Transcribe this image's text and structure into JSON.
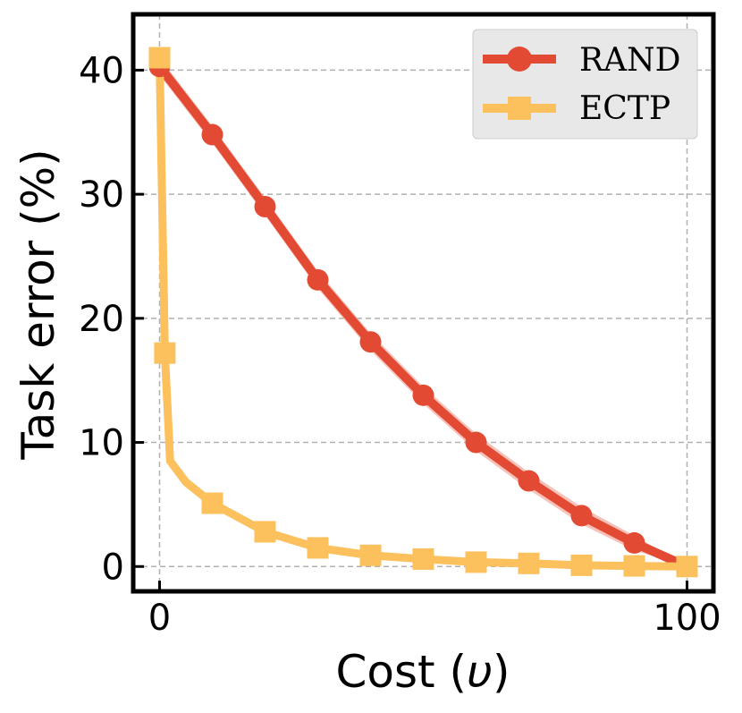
{
  "chart_data": {
    "type": "line",
    "title": "",
    "xlabel_main": "Cost (",
    "xlabel_var": "υ",
    "xlabel_end": ")",
    "ylabel": "Task error (%)",
    "xlim": [
      -5,
      105
    ],
    "ylim": [
      -2,
      44.5
    ],
    "x_ticks": [
      0,
      100
    ],
    "x_tick_labels": [
      "0",
      "100"
    ],
    "y_ticks": [
      0,
      10,
      20,
      30,
      40
    ],
    "y_tick_labels": [
      "0",
      "10",
      "20",
      "30",
      "40"
    ],
    "grid": true,
    "legend_position": "top-right",
    "series": [
      {
        "name": "RAND",
        "color": "#e34a33",
        "band_color": "#f4b3a8",
        "marker": "circle",
        "x": [
          0,
          10,
          20,
          30,
          40,
          50,
          60,
          70,
          80,
          90,
          100
        ],
        "y": [
          40.3,
          34.8,
          29.0,
          23.1,
          18.1,
          13.8,
          10.0,
          6.9,
          4.1,
          1.9,
          0.0
        ],
        "band": [
          0.7,
          0.7,
          0.7,
          0.7,
          0.7,
          0.7,
          0.7,
          0.7,
          0.7,
          0.6,
          0.0
        ]
      },
      {
        "name": "ECTP",
        "color": "#fcc05d",
        "marker": "square",
        "x": [
          0,
          1,
          2,
          5,
          10,
          20,
          30,
          40,
          50,
          60,
          70,
          80,
          90,
          100
        ],
        "y": [
          41.0,
          17.2,
          8.5,
          6.8,
          5.1,
          2.8,
          1.5,
          0.9,
          0.6,
          0.35,
          0.25,
          0.1,
          0.05,
          0.0
        ],
        "marker_indices": [
          0,
          1,
          4,
          5,
          6,
          7,
          8,
          9,
          10,
          11,
          12,
          13
        ]
      }
    ]
  }
}
